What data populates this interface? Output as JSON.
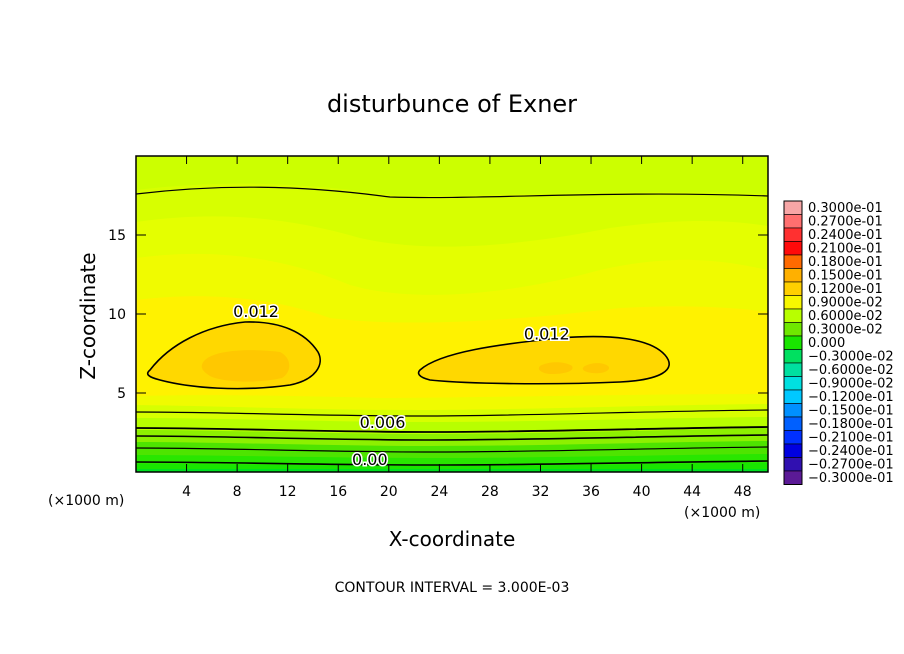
{
  "chart_data": {
    "type": "heatmap",
    "title": "disturbunce of Exner",
    "xlabel": "X-coordinate",
    "ylabel": "Z-coordinate",
    "x_unit": "(×1000 m)",
    "z_unit": "(×1000 m)",
    "footer": "CONTOUR INTERVAL = 3.000E-03",
    "xlim": [
      0,
      50
    ],
    "ylim": [
      0,
      20
    ],
    "x_ticks": [
      4,
      8,
      12,
      16,
      20,
      24,
      28,
      32,
      36,
      40,
      44,
      48
    ],
    "y_ticks": [
      5,
      10,
      15
    ],
    "x_tick_labels": [
      "4",
      "8",
      "12",
      "16",
      "20",
      "24",
      "28",
      "32",
      "36",
      "40",
      "44",
      "48"
    ],
    "y_tick_labels": [
      "5",
      "10",
      "15"
    ],
    "contour_interval": 0.003,
    "contour_labels": [
      {
        "text": "0.012",
        "x": 9.5,
        "z": 9.8
      },
      {
        "text": "0.012",
        "x": 32.5,
        "z": 8.4
      },
      {
        "text": "0.006",
        "x": 19.5,
        "z": 2.8
      },
      {
        "text": "0.00",
        "x": 18.5,
        "z": 0.45
      }
    ],
    "colorbar": {
      "levels": [
        0.03,
        0.027,
        0.024,
        0.021,
        0.018,
        0.015,
        0.012,
        0.009,
        0.006,
        0.003,
        0.0,
        -0.003,
        -0.006,
        -0.009,
        -0.012,
        -0.015,
        -0.018,
        -0.021,
        -0.024,
        -0.027,
        -0.03
      ],
      "labels": [
        "0.3000e-01",
        "0.2700e-01",
        "0.2400e-01",
        "0.2100e-01",
        "0.1800e-01",
        "0.1500e-01",
        "0.1200e-01",
        "0.9000e-02",
        "0.6000e-02",
        "0.3000e-02",
        "0.000",
        "−0.3000e-02",
        "−0.6000e-02",
        "−0.9000e-02",
        "−0.1200e-01",
        "−0.1500e-01",
        "−0.1800e-01",
        "−0.2100e-01",
        "−0.2400e-01",
        "−0.2700e-01",
        "−0.3000e-01"
      ],
      "colors": [
        "#f7a6a6",
        "#ff6f6f",
        "#ff3030",
        "#ff0a0a",
        "#ff6a00",
        "#ffb000",
        "#ffd000",
        "#f7f700",
        "#b8ff00",
        "#6fe800",
        "#19e600",
        "#00e060",
        "#00e0a0",
        "#00e0e0",
        "#00c8ff",
        "#0090ff",
        "#0060ff",
        "#0030ff",
        "#0000e0",
        "#3010b0",
        "#5b1a96"
      ]
    }
  }
}
